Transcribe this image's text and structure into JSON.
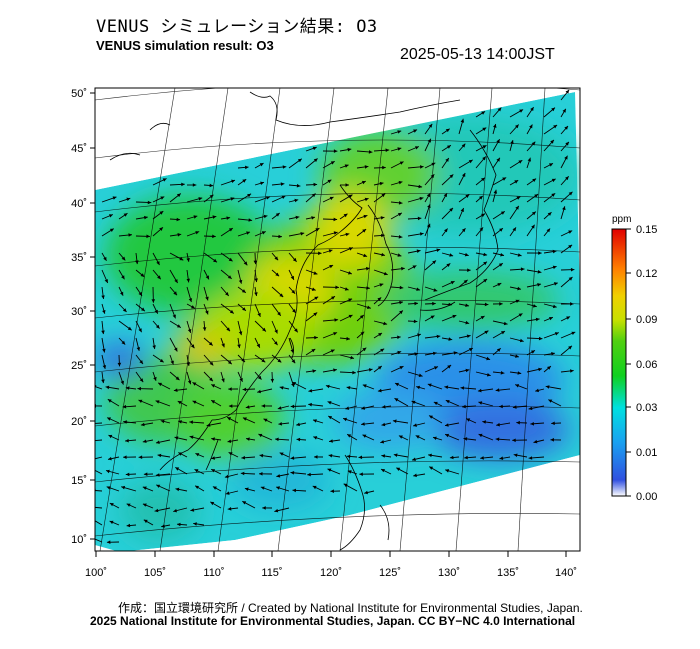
{
  "header": {
    "title_jp": "VENUS シミュレーション結果: O3",
    "title_en": "VENUS simulation result: O3",
    "timestamp": "2025-05-13 14:00JST"
  },
  "map": {
    "lat_labels": [
      "50˚",
      "45˚",
      "40˚",
      "35˚",
      "30˚",
      "25˚",
      "20˚",
      "15˚",
      "10˚"
    ],
    "lon_labels": [
      "100˚",
      "105˚",
      "110˚",
      "115˚",
      "120˚",
      "125˚",
      "130˚",
      "135˚",
      "140˚"
    ],
    "projection": "conic",
    "layers": [
      "ozone concentration field",
      "wind vectors",
      "coastlines"
    ]
  },
  "colorbar": {
    "unit": "ppm",
    "ticks": [
      "0.15",
      "0.12",
      "0.09",
      "0.06",
      "0.03",
      "0.01",
      "0.00"
    ],
    "colors": [
      "#ffffff",
      "#2060e0",
      "#00d0f0",
      "#10d020",
      "#a0e000",
      "#f0e000",
      "#ff9000",
      "#ff2000",
      "#d00000"
    ]
  },
  "footer": {
    "credit_jp": "作成：国立環境研究所 / Created by National Institute for Environmental Studies, Japan.",
    "copyright": "2025 National Institute for Environmental Studies, Japan. CC BY−NC 4.0 International"
  }
}
